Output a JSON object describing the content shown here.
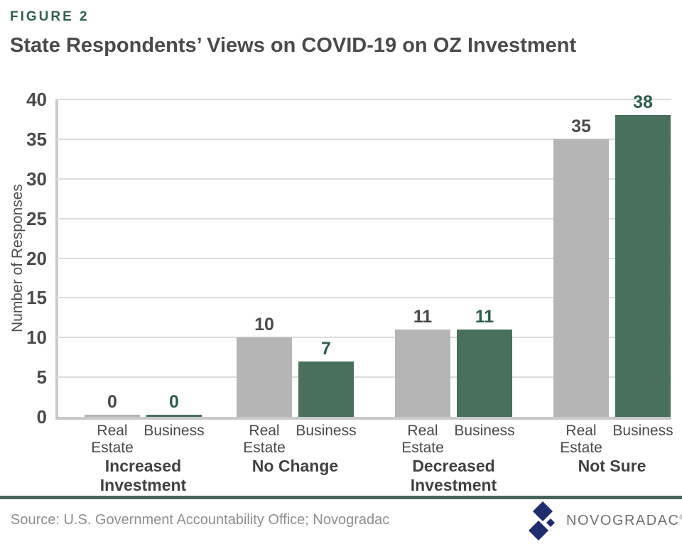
{
  "header": {
    "figure_label": "FIGURE 2",
    "title": "State Respondents’ Views on COVID-19 on OZ Investment"
  },
  "chart_data": {
    "type": "bar",
    "title": "State Respondents’ Views on COVID-19 on OZ Investment",
    "xlabel": "",
    "ylabel": "Number of Responses",
    "ylim": [
      0,
      40
    ],
    "yticks": [
      0,
      5,
      10,
      15,
      20,
      25,
      30,
      35,
      40
    ],
    "grid": true,
    "legend_position": "none",
    "categories": [
      "Increased Investment",
      "No Change",
      "Decreased Investment",
      "Not Sure"
    ],
    "category_lines": [
      "Increased\nInvestment",
      "No Change",
      "Decreased\nInvestment",
      "Not Sure"
    ],
    "sub_category_lines": [
      "Real\nEstate",
      "Business"
    ],
    "series": [
      {
        "name": "Real Estate",
        "color": "#B5B5B5",
        "label_color": "#4A4A4A",
        "values": [
          0,
          10,
          11,
          35
        ]
      },
      {
        "name": "Business",
        "color": "#48705C",
        "label_color": "#2D5E4C",
        "values": [
          0,
          7,
          11,
          38
        ]
      }
    ]
  },
  "footer": {
    "source": "Source: U.S. Government Accountability Office; Novogradac",
    "brand": "NOVOGRADAC",
    "registered": "®"
  },
  "colors": {
    "accent_green_dark": "#2D5E4C",
    "figure_label_green": "#30604E",
    "bar_gray": "#B5B5B5",
    "bar_green": "#48705C",
    "title_gray": "#4A4A4A",
    "axis_line_gray": "#C9C9C9",
    "gridline_gray": "#DCDCDC",
    "source_text_gray": "#8E8E8E",
    "footer_rule_green": "#46675A",
    "logo_navy": "#1F2C6E",
    "brand_text_gray": "#707174"
  }
}
